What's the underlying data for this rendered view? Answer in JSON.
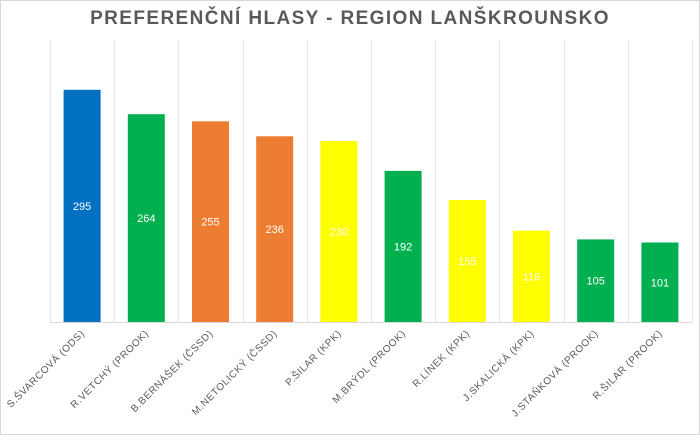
{
  "chart_data": {
    "type": "bar",
    "title": "PREFERENČNÍ HLASY - REGION LANŠKROUNSKO",
    "categories": [
      "S.ŠVARCOVÁ (ODS)",
      "R.VETCHÝ (PROOK)",
      "B.BERNÁŠEK (ČSSD)",
      "M.NETOLICKÝ (ČSSD)",
      "P.ŠILAR (KPK)",
      "M.BRÝDL (PROOK)",
      "R.LÍNEK (KPK)",
      "J.SKALICKÁ (KPK)",
      "J.STAŇKOVÁ (PROOK)",
      "R.ŠILAR (PROOK)"
    ],
    "values": [
      295,
      264,
      255,
      236,
      230,
      192,
      155,
      116,
      105,
      101
    ],
    "colors": [
      "#0070c0",
      "#00b050",
      "#ed7d31",
      "#ed7d31",
      "#ffff00",
      "#00b050",
      "#ffff00",
      "#ffff00",
      "#00b050",
      "#00b050"
    ],
    "label_color": "#ffffff",
    "ylim": [
      0,
      300
    ],
    "grid": "vertical category separators",
    "legend": "none",
    "xlabel": "",
    "ylabel": ""
  }
}
